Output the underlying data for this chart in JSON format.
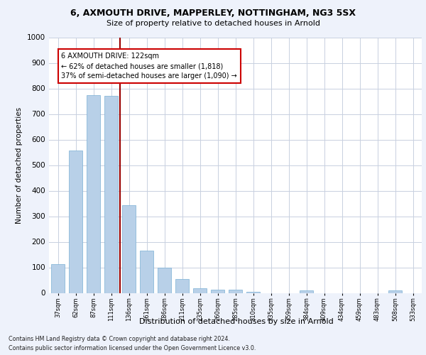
{
  "title1": "6, AXMOUTH DRIVE, MAPPERLEY, NOTTINGHAM, NG3 5SX",
  "title2": "Size of property relative to detached houses in Arnold",
  "xlabel": "Distribution of detached houses by size in Arnold",
  "ylabel": "Number of detached properties",
  "categories": [
    "37sqm",
    "62sqm",
    "87sqm",
    "111sqm",
    "136sqm",
    "161sqm",
    "186sqm",
    "211sqm",
    "235sqm",
    "260sqm",
    "285sqm",
    "310sqm",
    "335sqm",
    "359sqm",
    "384sqm",
    "409sqm",
    "434sqm",
    "459sqm",
    "483sqm",
    "508sqm",
    "533sqm"
  ],
  "values": [
    112,
    558,
    775,
    770,
    344,
    165,
    98,
    53,
    18,
    13,
    12,
    4,
    0,
    0,
    10,
    0,
    0,
    0,
    0,
    10,
    0
  ],
  "bar_color": "#b8d0e8",
  "bar_edge_color": "#7aafd4",
  "vline_x_index": 3.5,
  "vline_color": "#990000",
  "annotation_text": "6 AXMOUTH DRIVE: 122sqm\n← 62% of detached houses are smaller (1,818)\n37% of semi-detached houses are larger (1,090) →",
  "annotation_box_color": "#ffffff",
  "annotation_box_edge_color": "#cc0000",
  "ylim": [
    0,
    1000
  ],
  "yticks": [
    0,
    100,
    200,
    300,
    400,
    500,
    600,
    700,
    800,
    900,
    1000
  ],
  "footer1": "Contains HM Land Registry data © Crown copyright and database right 2024.",
  "footer2": "Contains public sector information licensed under the Open Government Licence v3.0.",
  "background_color": "#eef2fb",
  "plot_bg_color": "#ffffff",
  "grid_color": "#c8d0e0"
}
